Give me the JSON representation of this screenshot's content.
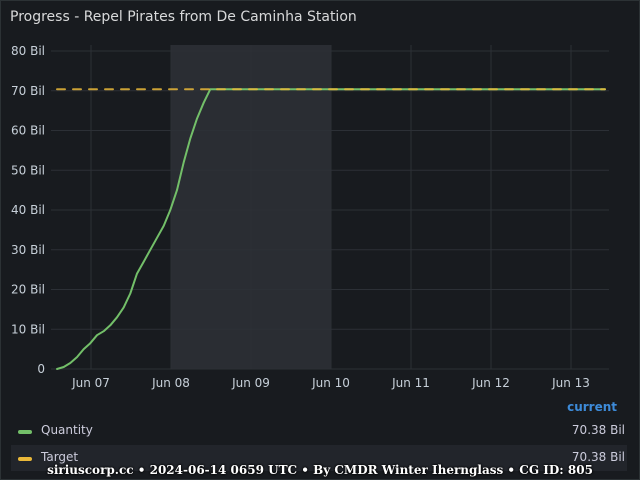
{
  "panel": {
    "title": "Progress - Repel Pirates from De Caminha Station"
  },
  "chart_data": {
    "type": "line",
    "title": "Progress - Repel Pirates from De Caminha Station",
    "xlabel": "",
    "ylabel": "",
    "x_range": [
      "Jun 06 17:00",
      "Jun 13 23:00"
    ],
    "x_ticks": [
      "Jun 07",
      "Jun 08",
      "Jun 09",
      "Jun 10",
      "Jun 11",
      "Jun 12",
      "Jun 13"
    ],
    "y_range": [
      0,
      80
    ],
    "y_ticks": [
      "0",
      "10 Bil",
      "20 Bil",
      "30 Bil",
      "40 Bil",
      "50 Bil",
      "60 Bil",
      "70 Bil",
      "80 Bil"
    ],
    "y_unit": "Bil",
    "grid": true,
    "legend_position": "bottom",
    "highlight_range": [
      "Jun 08 00:00",
      "Jun 10 00:00"
    ],
    "series": [
      {
        "name": "Quantity",
        "color": "#73bf69",
        "style": "solid",
        "x_hours": [
          0,
          2,
          4,
          6,
          8,
          10,
          12,
          14,
          16,
          18,
          20,
          22,
          24,
          26,
          28,
          30,
          32,
          34,
          36,
          38,
          40,
          42,
          44,
          46,
          48,
          50,
          52,
          54,
          56,
          57,
          58,
          59,
          60,
          62,
          64,
          200
        ],
        "values": [
          0,
          0.5,
          1.5,
          3,
          5,
          6.5,
          8.5,
          9.5,
          11,
          13,
          15.5,
          19,
          24,
          27,
          30,
          33,
          36,
          40,
          45,
          52,
          58,
          63,
          67,
          70.38,
          70.38,
          70.38,
          70.38,
          70.38,
          70.38,
          70.38,
          70.38,
          70.38,
          70.38,
          70.38,
          70.38,
          70.38
        ],
        "current": "70.38 Bil"
      },
      {
        "name": "Target",
        "color": "#eab839",
        "style": "dashed",
        "x_hours": [
          0,
          200
        ],
        "values": [
          70.38,
          70.38
        ],
        "current": "70.38 Bil"
      }
    ]
  },
  "legend": {
    "header": "current",
    "items": [
      {
        "name": "Quantity",
        "value": "70.38 Bil",
        "color": "#73bf69"
      },
      {
        "name": "Target",
        "value": "70.38 Bil",
        "color": "#eab839"
      }
    ]
  },
  "footer": {
    "text": "siriuscorp.cc • 2024-06-14 0659 UTC • By CMDR Winter Iherngl​ass • CG ID: 805"
  }
}
